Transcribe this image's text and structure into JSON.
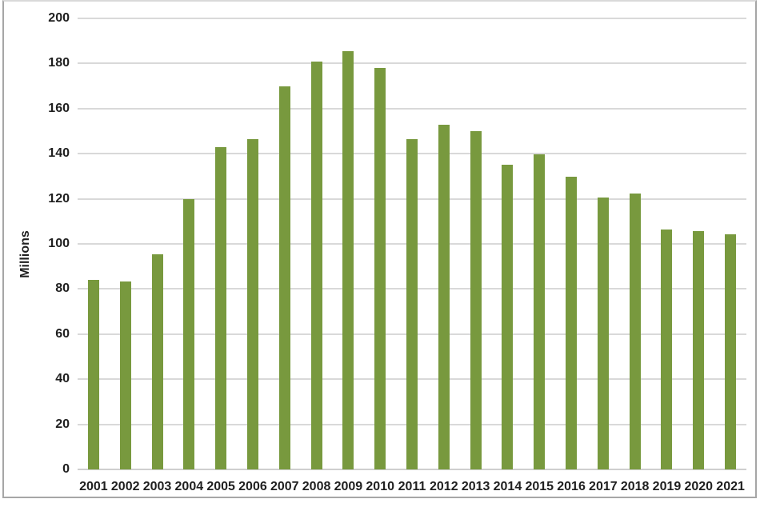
{
  "chart_data": {
    "type": "bar",
    "title": "",
    "xlabel": "",
    "ylabel": "Millions",
    "categories": [
      "2001",
      "2002",
      "2003",
      "2004",
      "2005",
      "2006",
      "2007",
      "2008",
      "2009",
      "2010",
      "2011",
      "2012",
      "2013",
      "2014",
      "2015",
      "2016",
      "2017",
      "2018",
      "2019",
      "2020",
      "2021"
    ],
    "values": [
      84.0,
      83.2,
      95.5,
      119.9,
      142.8,
      146.3,
      169.7,
      180.9,
      185.4,
      177.9,
      146.4,
      152.9,
      150.0,
      135.1,
      139.8,
      129.8,
      120.7,
      122.5,
      106.5,
      105.7,
      104.4
    ],
    "ylim": [
      0,
      200
    ],
    "yticks": [
      0,
      20,
      40,
      60,
      80,
      100,
      120,
      140,
      160,
      180,
      200
    ],
    "grid": true,
    "legend": false,
    "colors": {
      "bar_fill": "#78993e",
      "gridline": "#d9d9d9",
      "axis_line": "#cfcfcf",
      "text": "#1f1f1f",
      "frame_border": "#a6a6a6",
      "background": "#ffffff"
    }
  }
}
